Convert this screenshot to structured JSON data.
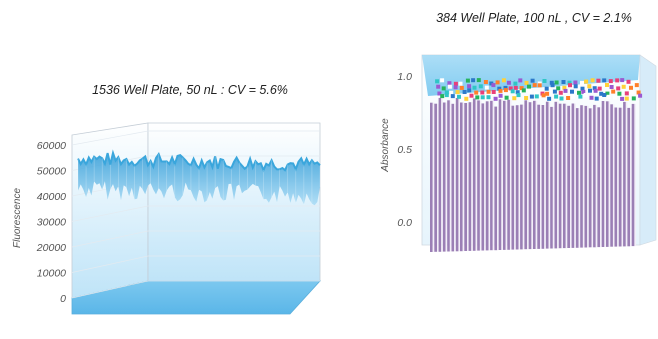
{
  "chart_data": [
    {
      "type": "area",
      "title": "1536 Well Plate, 50 nL : CV = 5.6%",
      "ylabel": "Fluorescence",
      "ylim": [
        0,
        60000
      ],
      "yticks": [
        "60000",
        "50000",
        "40000",
        "30000",
        "20000",
        "10000",
        "0"
      ],
      "mean_value": 43000,
      "grid": true,
      "surface_color": "#3aa6dc"
    },
    {
      "type": "bar",
      "title": "384 Well Plate, 100 nL , CV = 2.1%",
      "ylabel": "Absorbance",
      "ylim": [
        0,
        1.0
      ],
      "yticks": [
        "1.0",
        "0.5",
        "0.0"
      ],
      "mean_value": 0.95,
      "grid": false,
      "bar_color": "#9b7fb5",
      "cap_colors": [
        "#e8407a",
        "#2b78c9",
        "#ffd23a",
        "#27b35c",
        "#9b59d0",
        "#ff7f2a",
        "#2fc6c6",
        "#ffffff"
      ]
    }
  ]
}
